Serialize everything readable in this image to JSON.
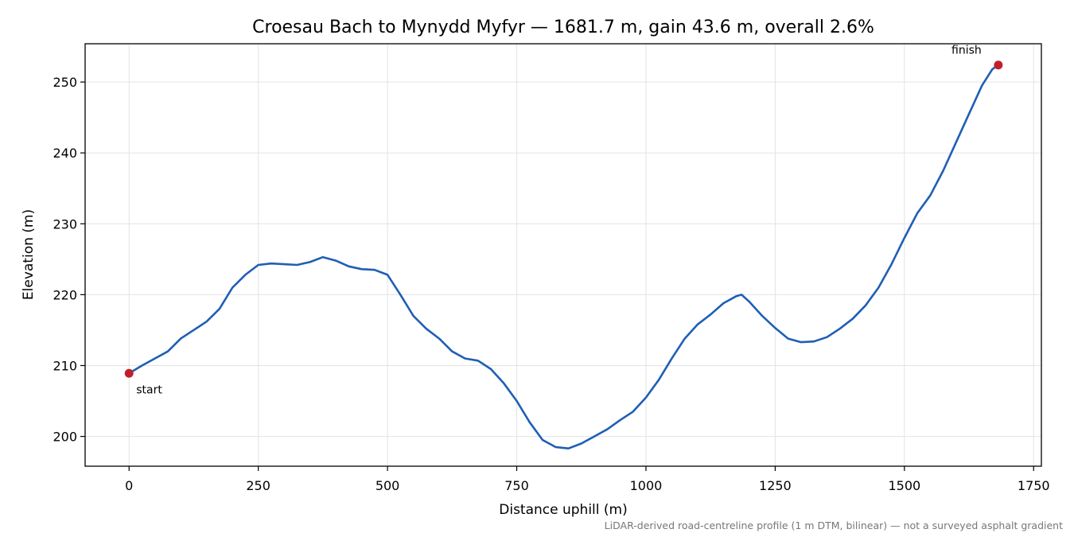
{
  "chart_data": {
    "type": "line",
    "title": "Croesau Bach to Mynydd Myfyr — 1681.7 m, gain 43.6 m, overall 2.6%",
    "xlabel": "Distance uphill (m)",
    "ylabel": "Elevation (m)",
    "xlim": [
      -85,
      1765
    ],
    "ylim": [
      195.8,
      255.4
    ],
    "x_ticks": [
      0,
      250,
      500,
      750,
      1000,
      1250,
      1500,
      1750
    ],
    "y_ticks": [
      200,
      210,
      220,
      230,
      240,
      250
    ],
    "grid": true,
    "line_color": "#1f5fb4",
    "marker_color": "#c0202a",
    "series": [
      {
        "x": [
          0,
          25,
          50,
          75,
          100,
          125,
          150,
          175,
          200,
          225,
          250,
          275,
          300,
          325,
          350,
          375,
          400,
          425,
          450,
          475,
          500,
          525,
          550,
          575,
          600,
          625,
          650,
          675,
          700,
          725,
          750,
          775,
          800,
          825,
          850,
          875,
          900,
          925,
          950,
          975,
          1000,
          1025,
          1050,
          1075,
          1100,
          1125,
          1150,
          1175,
          1185,
          1200,
          1225,
          1250,
          1275,
          1300,
          1325,
          1350,
          1375,
          1400,
          1425,
          1450,
          1475,
          1500,
          1525,
          1550,
          1575,
          1600,
          1625,
          1650,
          1670,
          1681.7
        ],
        "y": [
          208.9,
          210.0,
          211.0,
          212.0,
          213.8,
          215.0,
          216.2,
          218.0,
          221.0,
          222.8,
          224.2,
          224.4,
          224.3,
          224.2,
          224.6,
          225.3,
          224.8,
          224.0,
          223.6,
          223.5,
          222.8,
          220.0,
          217.0,
          215.2,
          213.8,
          212.0,
          211.0,
          210.7,
          209.5,
          207.5,
          205.0,
          202.0,
          199.5,
          198.5,
          198.3,
          199.0,
          200.0,
          201.0,
          202.3,
          203.5,
          205.5,
          208.0,
          211.0,
          213.8,
          215.8,
          217.2,
          218.8,
          219.8,
          220.0,
          219.0,
          217.0,
          215.3,
          213.8,
          213.3,
          213.4,
          214.0,
          215.2,
          216.6,
          218.5,
          221.0,
          224.3,
          228.0,
          231.5,
          234.0,
          237.5,
          241.5,
          245.5,
          249.5,
          251.8,
          252.4
        ]
      }
    ],
    "annotations": [
      {
        "text": "start",
        "x": 0,
        "y": 208.9
      },
      {
        "text": "finish",
        "x": 1681.7,
        "y": 252.4
      }
    ],
    "footnote": "LiDAR-derived road-centreline profile (1 m DTM, bilinear) — not a surveyed asphalt gradient"
  }
}
